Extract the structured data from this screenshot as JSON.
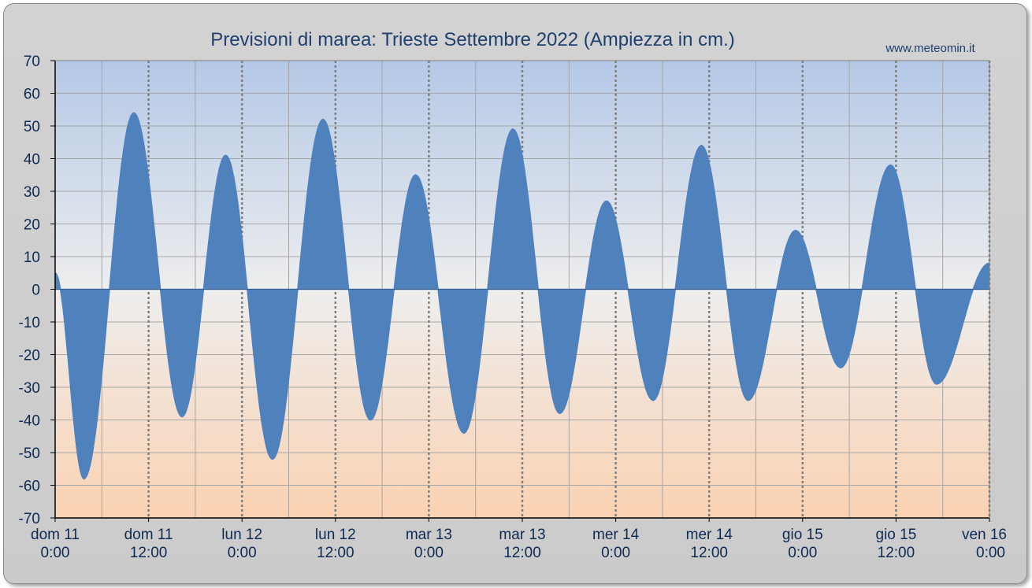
{
  "chart_data": {
    "type": "area",
    "title": "Previsioni di marea: Trieste Settembre 2022 (Ampiezza in cm.)",
    "source": "www.meteomin.it",
    "xlabel": "",
    "ylabel": "",
    "ylim": [
      -70,
      70
    ],
    "y_ticks": [
      70,
      60,
      50,
      40,
      30,
      20,
      10,
      0,
      -10,
      -20,
      -30,
      -40,
      -50,
      -60,
      -70
    ],
    "x_unit": "hours since dom 11 0:00",
    "xlim": [
      0,
      120
    ],
    "x_ticks": [
      {
        "day": "dom",
        "date": "11",
        "time": "0:00",
        "hour": 0
      },
      {
        "day": "dom",
        "date": "11",
        "time": "12:00",
        "hour": 12
      },
      {
        "day": "lun",
        "date": "12",
        "time": "0:00",
        "hour": 24
      },
      {
        "day": "lun",
        "date": "12",
        "time": "12:00",
        "hour": 36
      },
      {
        "day": "mar",
        "date": "13",
        "time": "0:00",
        "hour": 48
      },
      {
        "day": "mar",
        "date": "13",
        "time": "12:00",
        "hour": 60
      },
      {
        "day": "mer",
        "date": "14",
        "time": "0:00",
        "hour": 72
      },
      {
        "day": "mer",
        "date": "14",
        "time": "12:00",
        "hour": 84
      },
      {
        "day": "gio",
        "date": "15",
        "time": "0:00",
        "hour": 96
      },
      {
        "day": "gio",
        "date": "15",
        "time": "12:00",
        "hour": 108
      },
      {
        "day": "ven",
        "date": "16",
        "time": "0:00",
        "hour": 120
      }
    ],
    "series": [
      {
        "color": "#4f81bd",
        "extrema": [
          {
            "hour": 0.0,
            "value": 5
          },
          {
            "hour": 3.7,
            "value": -58
          },
          {
            "hour": 10.1,
            "value": 54
          },
          {
            "hour": 16.3,
            "value": -39
          },
          {
            "hour": 21.9,
            "value": 41
          },
          {
            "hour": 27.9,
            "value": -52
          },
          {
            "hour": 34.4,
            "value": 52
          },
          {
            "hour": 40.5,
            "value": -40
          },
          {
            "hour": 46.3,
            "value": 35
          },
          {
            "hour": 52.5,
            "value": -44
          },
          {
            "hour": 58.8,
            "value": 49
          },
          {
            "hour": 64.8,
            "value": -38
          },
          {
            "hour": 70.8,
            "value": 27
          },
          {
            "hour": 76.8,
            "value": -34
          },
          {
            "hour": 83.0,
            "value": 44
          },
          {
            "hour": 89.0,
            "value": -34
          },
          {
            "hour": 95.1,
            "value": 18
          },
          {
            "hour": 100.9,
            "value": -24
          },
          {
            "hour": 107.3,
            "value": 38
          },
          {
            "hour": 113.2,
            "value": -29
          },
          {
            "hour": 120.0,
            "value": 8
          }
        ]
      }
    ],
    "colors": {
      "plot_top": "#b4c8e6",
      "plot_mid": "#eeeeee",
      "plot_bottom": "#fad2b2",
      "grid_minor": "#a6a6a6",
      "grid_major": "#7f7f7f",
      "text": "#0e2a52"
    }
  }
}
